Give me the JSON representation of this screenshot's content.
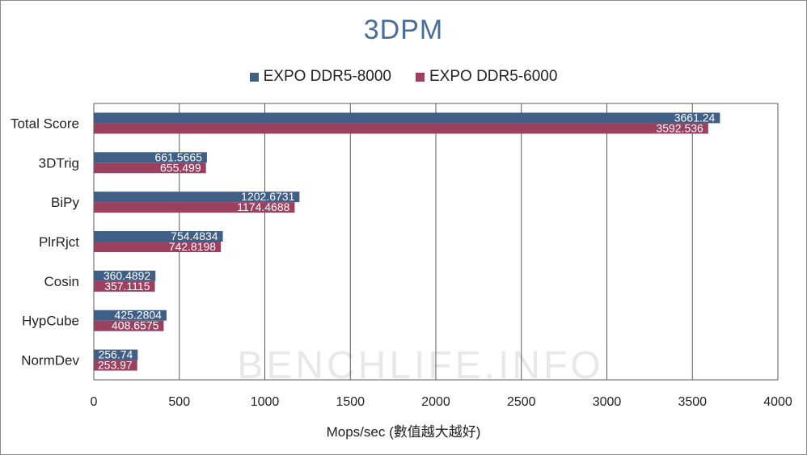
{
  "chart_data": {
    "type": "bar",
    "orientation": "horizontal",
    "title": "3DPM",
    "xlabel": "Mops/sec (數值越大越好)",
    "ylabel": "",
    "xlim": [
      0,
      4000
    ],
    "xticks": [
      0,
      500,
      1000,
      1500,
      2000,
      2500,
      3000,
      3500,
      4000
    ],
    "grid": "vertical",
    "legend_position": "top",
    "categories": [
      "Total Score",
      "3DTrig",
      "BiPy",
      "PlrRjct",
      "Cosin",
      "HypCube",
      "NormDev"
    ],
    "series": [
      {
        "name": "EXPO DDR5-8000",
        "color": "#3f5f87",
        "values": [
          3661.24,
          661.5665,
          1202.6731,
          754.4834,
          360.4892,
          425.2804,
          256.74
        ],
        "labels": [
          "3661.24",
          "661.5665",
          "1202.6731",
          "754.4834",
          "360.4892",
          "425.2804",
          "256.74"
        ]
      },
      {
        "name": "EXPO DDR5-6000",
        "color": "#9c4060",
        "values": [
          3592.536,
          655.499,
          1174.4688,
          742.8198,
          357.1115,
          408.6575,
          253.97
        ],
        "labels": [
          "3592.536",
          "655.499",
          "1174.4688",
          "742.8198",
          "357.1115",
          "408.6575",
          "253.97"
        ]
      }
    ],
    "watermark": "BENCHLIFE.INFO"
  }
}
